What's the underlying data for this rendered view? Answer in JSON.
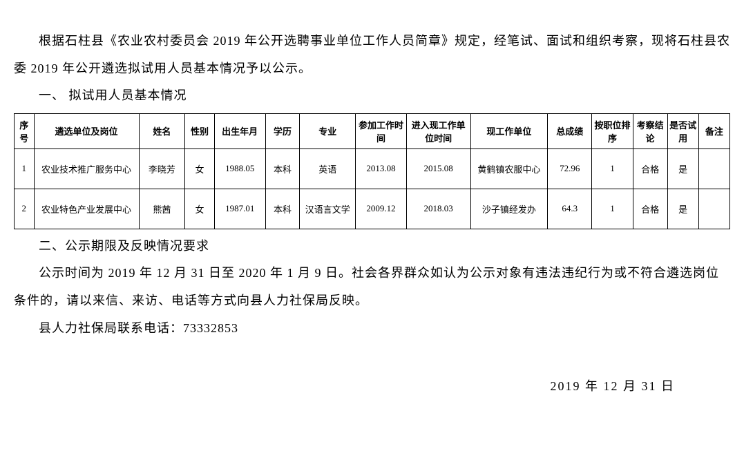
{
  "intro": {
    "para1": "根据石柱县《农业农村委员会 2019 年公开选聘事业单位工作人员简章》规定，经笔试、面试和组织考察，现将石柱县农委 2019 年公开遴选拟试用人员基本情况予以公示。"
  },
  "section1": {
    "header": "一、 拟试用人员基本情况"
  },
  "table": {
    "headers": {
      "seq": "序号",
      "unit": "遴选单位及岗位",
      "name": "姓名",
      "gender": "性别",
      "birth": "出生年月",
      "edu": "学历",
      "major": "专业",
      "worktime": "参加工作时间",
      "currenttime": "进入现工作单位时间",
      "currentunit": "现工作单位",
      "score": "总成绩",
      "rank": "按职位排序",
      "result": "考察结论",
      "trial": "是否试用",
      "remark": "备注"
    },
    "rows": [
      {
        "seq": "1",
        "unit": "农业技术推广服务中心",
        "name": "李晓芳",
        "gender": "女",
        "birth": "1988.05",
        "edu": "本科",
        "major": "英语",
        "worktime": "2013.08",
        "currenttime": "2015.08",
        "currentunit": "黄鹤镇农服中心",
        "score": "72.96",
        "rank": "1",
        "result": "合格",
        "trial": "是",
        "remark": ""
      },
      {
        "seq": "2",
        "unit": "农业特色产业发展中心",
        "name": "熊茜",
        "gender": "女",
        "birth": "1987.01",
        "edu": "本科",
        "major": "汉语言文学",
        "worktime": "2009.12",
        "currenttime": "2018.03",
        "currentunit": "沙子镇经发办",
        "score": "64.3",
        "rank": "1",
        "result": "合格",
        "trial": "是",
        "remark": ""
      }
    ]
  },
  "section2": {
    "header": "二、公示期限及反映情况要求",
    "para": "公示时间为 2019 年 12 月 31 日至 2020 年 1 月 9 日。社会各界群众如认为公示对象有违法违纪行为或不符合遴选岗位条件的，请以来信、来访、电话等方式向县人力社保局反映。",
    "contact": "县人力社保局联系电话：73332853"
  },
  "footer": {
    "date": "2019 年 12 月 31 日"
  },
  "style": {
    "body_font_size": 18,
    "table_font_size": 13,
    "text_color": "#000000",
    "background_color": "#ffffff",
    "border_color": "#000000"
  }
}
